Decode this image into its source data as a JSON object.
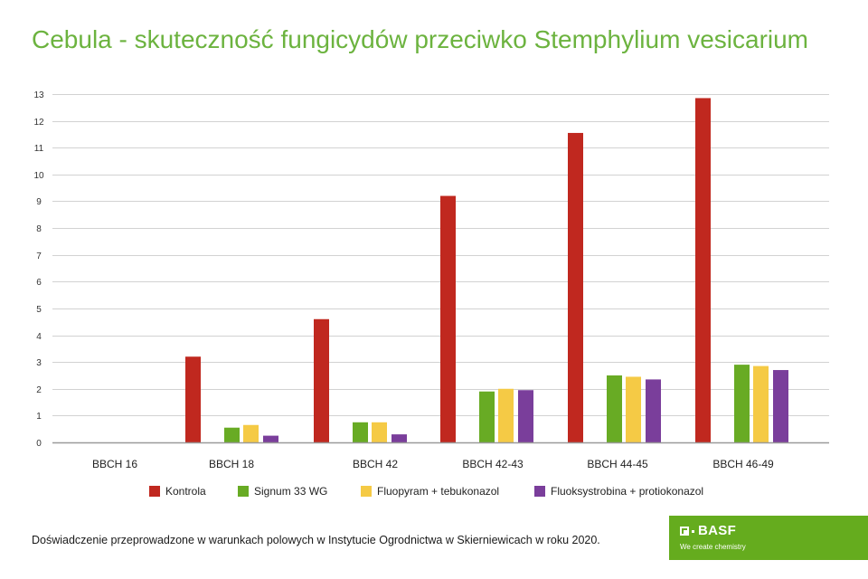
{
  "chart_data": {
    "type": "bar",
    "title": "Cebula - skuteczność fungicydów przeciwko Stemphylium vesicarium",
    "xlabel": "",
    "ylabel": "",
    "categories": [
      "BBCH 16",
      "BBCH 18",
      "BBCH 42",
      "BBCH 42-43",
      "BBCH 44-45",
      "BBCH 46-49"
    ],
    "series": [
      {
        "name": "Kontrola",
        "color": "#c0281f",
        "values": [
          0,
          3.2,
          4.6,
          9.2,
          11.55,
          12.85
        ]
      },
      {
        "name": "Signum 33 WG",
        "color": "#68ab24",
        "values": [
          0,
          0.55,
          0.75,
          1.9,
          2.5,
          2.9
        ]
      },
      {
        "name": "Fluopyram + tebukonazol",
        "color": "#f5ca45",
        "values": [
          0,
          0.65,
          0.75,
          2.0,
          2.45,
          2.85
        ]
      },
      {
        "name": "Fluoksystrobina + protiokonazol",
        "color": "#7a3e9b",
        "values": [
          0,
          0.25,
          0.3,
          1.95,
          2.35,
          2.7
        ]
      }
    ],
    "ylim": [
      0,
      13
    ],
    "yticks": [
      0,
      1,
      2,
      3,
      4,
      5,
      6,
      7,
      8,
      9,
      10,
      11,
      12,
      13
    ],
    "grid": true,
    "legend": "bottom"
  },
  "footer": {
    "text": "Doświadczenie przeprowadzone w warunkach polowych w Instytucie Ogrodnictwa w Skierniewicach w roku 2020."
  },
  "logo": {
    "brand": "BASF",
    "tagline": "We create chemistry",
    "color": "#65ac1e"
  },
  "colors": {
    "title": "#6cb33f",
    "grid": "#d2d2d2",
    "axis": "#9a9a9a"
  }
}
